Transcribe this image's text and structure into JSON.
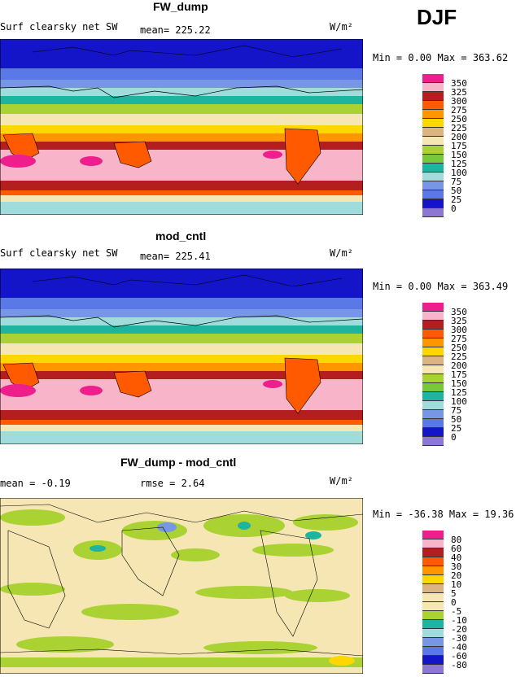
{
  "season": "DJF",
  "panels": [
    {
      "title": "FW_dump",
      "left_text": "Surf clearsky net SW",
      "stat1": "mean= 225.22",
      "stat2": "",
      "units": "W/m²",
      "minmax": "Min =   0.00 Max = 363.62"
    },
    {
      "title": "mod_cntl",
      "left_text": "Surf clearsky net SW",
      "stat1": "mean= 225.41",
      "stat2": "",
      "units": "W/m²",
      "minmax": "Min =   0.00 Max = 363.49"
    },
    {
      "title": "FW_dump - mod_cntl",
      "left_text": "mean =  -0.19",
      "stat1": "rmse =   2.64",
      "stat2": "",
      "units": "W/m²",
      "minmax": "Min = -36.38 Max =  19.36"
    }
  ],
  "colorbars": {
    "absolute": {
      "labels": [
        "350",
        "325",
        "300",
        "275",
        "250",
        "225",
        "200",
        "175",
        "150",
        "125",
        "100",
        "75",
        "50",
        "25",
        "0"
      ],
      "colors": [
        "#ee1e8c",
        "#f8b4c8",
        "#b41e1e",
        "#ff5a00",
        "#ff9600",
        "#ffd700",
        "#dcb482",
        "#f5e6b4",
        "#aad232",
        "#78c83c",
        "#1eb4a0",
        "#a0dcdc",
        "#7896e6",
        "#5a78e6",
        "#1414c8",
        "#8c78d2"
      ]
    },
    "difference": {
      "labels": [
        "80",
        "60",
        "40",
        "30",
        "20",
        "10",
        "5",
        "0",
        "-5",
        "-10",
        "-20",
        "-30",
        "-40",
        "-60",
        "-80"
      ],
      "colors": [
        "#ee1e8c",
        "#f8b4c8",
        "#b41e1e",
        "#ff5a00",
        "#ff9600",
        "#ffd700",
        "#dcb482",
        "#f5e6b4",
        "#f5e6b4",
        "#aad232",
        "#1eb4a0",
        "#a0dcdc",
        "#7896e6",
        "#5a78e6",
        "#1414c8",
        "#8c78d2"
      ]
    }
  },
  "chart_data": [
    {
      "type": "heatmap",
      "title": "FW_dump",
      "variable": "Surf clearsky net SW",
      "units": "W/m²",
      "mean": 225.22,
      "min": 0.0,
      "max": 363.62,
      "levels": [
        0,
        25,
        50,
        75,
        100,
        125,
        150,
        175,
        200,
        225,
        250,
        275,
        300,
        325,
        350
      ]
    },
    {
      "type": "heatmap",
      "title": "mod_cntl",
      "variable": "Surf clearsky net SW",
      "units": "W/m²",
      "mean": 225.41,
      "min": 0.0,
      "max": 363.49,
      "levels": [
        0,
        25,
        50,
        75,
        100,
        125,
        150,
        175,
        200,
        225,
        250,
        275,
        300,
        325,
        350
      ]
    },
    {
      "type": "heatmap",
      "title": "FW_dump - mod_cntl",
      "units": "W/m²",
      "mean": -0.19,
      "rmse": 2.64,
      "min": -36.38,
      "max": 19.36,
      "levels": [
        -80,
        -60,
        -40,
        -30,
        -20,
        -10,
        -5,
        0,
        5,
        10,
        20,
        30,
        40,
        60,
        80
      ]
    }
  ]
}
